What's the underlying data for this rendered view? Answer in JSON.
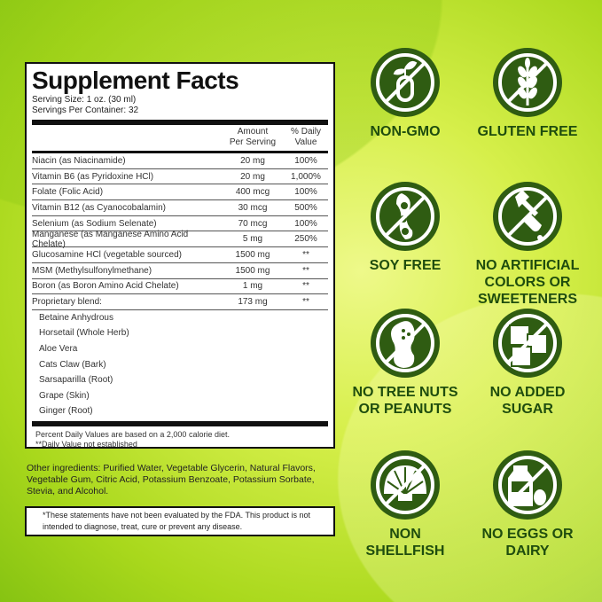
{
  "facts": {
    "title": "Supplement Facts",
    "serving_size": "Serving Size: 1 oz. (30 ml)",
    "servings_per_container": "Servings Per Container: 32",
    "col_amount_1": "Amount",
    "col_amount_2": "Per Serving",
    "col_dv_1": "% Daily",
    "col_dv_2": "Value",
    "rows": [
      {
        "name": "Niacin (as Niacinamide)",
        "amount": "20 mg",
        "dv": "100%"
      },
      {
        "name": "Vitamin B6 (as Pyridoxine HCl)",
        "amount": "20 mg",
        "dv": "1,000%"
      },
      {
        "name": "Folate (Folic Acid)",
        "amount": "400 mcg",
        "dv": "100%"
      },
      {
        "name": "Vitamin B12 (as Cyanocobalamin)",
        "amount": "30 mcg",
        "dv": "500%"
      },
      {
        "name": "Selenium (as Sodium Selenate)",
        "amount": "70 mcg",
        "dv": "100%"
      },
      {
        "name": "Manganese (as Manganese Amino Acid Chelate)",
        "amount": "5 mg",
        "dv": "250%"
      },
      {
        "name": "Glucosamine HCl (vegetable sourced)",
        "amount": "1500 mg",
        "dv": "**"
      },
      {
        "name": "MSM (Methylsulfonylmethane)",
        "amount": "1500 mg",
        "dv": "**"
      },
      {
        "name": "Boron (as Boron Amino Acid Chelate)",
        "amount": "1 mg",
        "dv": "**"
      },
      {
        "name": "Proprietary blend:",
        "amount": "173 mg",
        "dv": "**"
      }
    ],
    "blend": [
      "Betaine Anhydrous",
      "Horsetail (Whole Herb)",
      "Aloe Vera",
      "Cats Claw (Bark)",
      "Sarsaparilla (Root)",
      "Grape (Skin)",
      "Ginger (Root)"
    ],
    "footnote_1": "Percent Daily Values are based on a 2,000 calorie diet.",
    "footnote_2": "**Daily Value not established"
  },
  "other_ingredients": "Other ingredients: Purified Water, Vegetable Glycerin, Natural Flavors, Vegetable Gum, Citric Acid, Potassium Benzoate, Potassium Sorbate, Stevia, and Alcohol.",
  "fda_disclaimer": "*These statements have not been evaluated by the FDA. This product is not intended to diagnose, treat, cure or prevent any disease.",
  "colors": {
    "badge_green": "#2f5c12",
    "label_green": "#1f4d0e"
  },
  "badges": [
    {
      "label": "NON-GMO",
      "icon": "test-tube-plant-icon"
    },
    {
      "label": "GLUTEN FREE",
      "icon": "wheat-icon"
    },
    {
      "label": "SOY FREE",
      "icon": "soybean-icon"
    },
    {
      "label": "NO ARTIFICIAL COLORS OR SWEETENERS",
      "icon": "dropper-icon"
    },
    {
      "label": "NO TREE NUTS OR PEANUTS",
      "icon": "peanut-icon"
    },
    {
      "label": "NO ADDED SUGAR",
      "icon": "sugar-cubes-icon"
    },
    {
      "label": "NON SHELLFISH",
      "icon": "shell-icon"
    },
    {
      "label": "NO EGGS OR DAIRY",
      "icon": "milk-egg-icon"
    }
  ]
}
